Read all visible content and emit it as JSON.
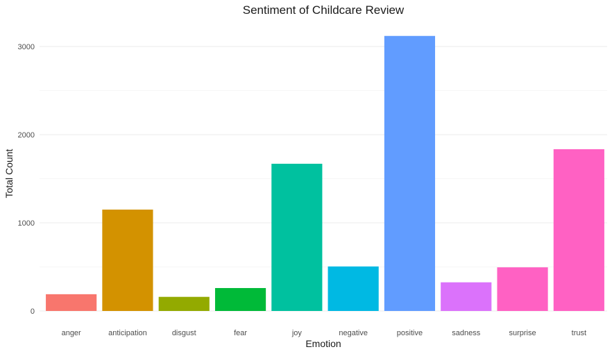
{
  "chart_data": {
    "type": "bar",
    "title": "Sentiment of Childcare Review",
    "xlabel": "Emotion",
    "ylabel": "Total Count",
    "categories": [
      "anger",
      "anticipation",
      "disgust",
      "fear",
      "joy",
      "negative",
      "positive",
      "sadness",
      "surprise",
      "trust"
    ],
    "values": [
      190,
      1150,
      160,
      260,
      1670,
      505,
      3120,
      325,
      495,
      1835
    ],
    "colors": [
      "#F8766D",
      "#D39200",
      "#93AA00",
      "#00BA38",
      "#00C19F",
      "#00B9E3",
      "#619CFF",
      "#DB72FB",
      "#FF61C3",
      "#FF61C3"
    ],
    "ylim": [
      0,
      3200
    ],
    "yticks": [
      0,
      1000,
      2000,
      3000
    ],
    "grid": true,
    "legend": "none"
  }
}
